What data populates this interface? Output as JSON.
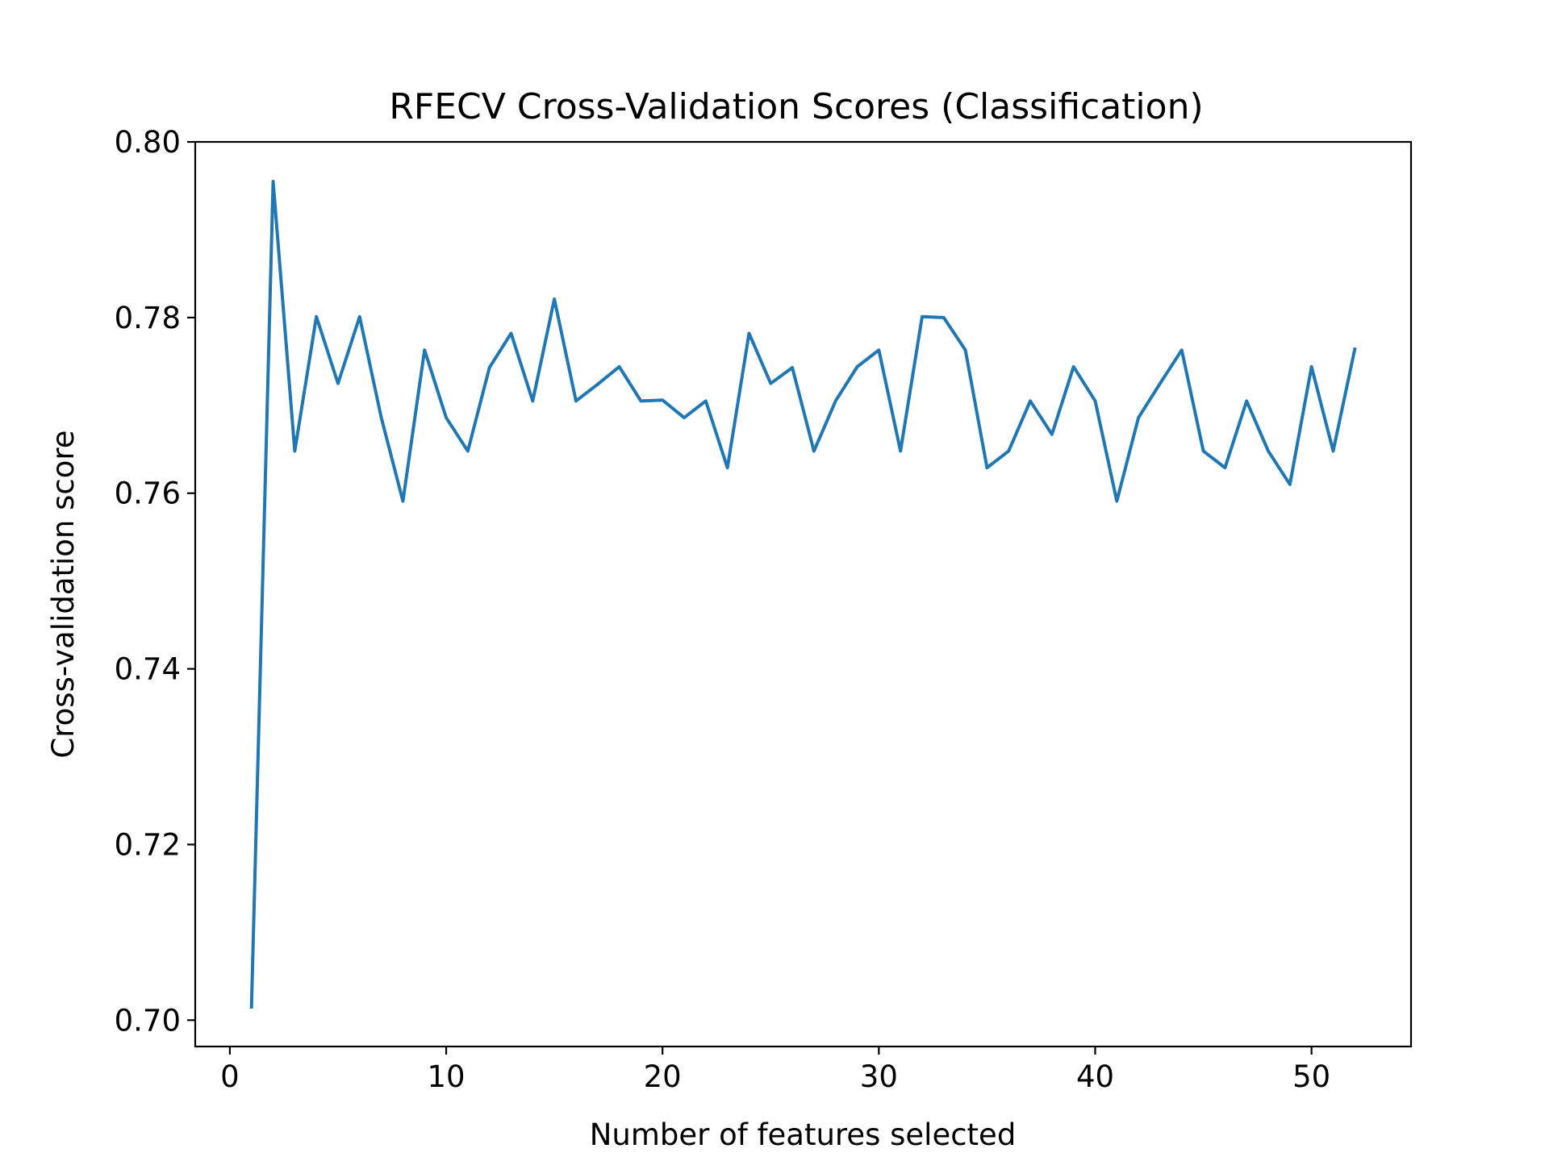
{
  "chart_data": {
    "type": "line",
    "title": "RFECV Cross-Validation Scores (Classification)",
    "xlabel": "Number of features selected",
    "ylabel": "Cross-validation score",
    "xlim": [
      -1.6,
      54.6
    ],
    "ylim": [
      0.697,
      0.8
    ],
    "xticks": [
      0,
      10,
      20,
      30,
      40,
      50
    ],
    "yticks": [
      0.7,
      0.72,
      0.74,
      0.76,
      0.78,
      0.8
    ],
    "xtick_labels": [
      "0",
      "10",
      "20",
      "30",
      "40",
      "50"
    ],
    "ytick_labels": [
      "0.70",
      "0.72",
      "0.74",
      "0.76",
      "0.78",
      "0.80"
    ],
    "grid": false,
    "legend": "none",
    "line_color": "#1f77b4",
    "series": [
      {
        "x": [
          1,
          2,
          3,
          4,
          5,
          6,
          7,
          8,
          9,
          10,
          11,
          12,
          13,
          14,
          15,
          16,
          17,
          18,
          19,
          20,
          21,
          22,
          23,
          24,
          25,
          26,
          27,
          28,
          29,
          30,
          31,
          32,
          33,
          34,
          35,
          36,
          37,
          38,
          39,
          40,
          41,
          42,
          43,
          44,
          45,
          46,
          47,
          48,
          49,
          50,
          51,
          52
        ],
        "values": [
          0.7015,
          0.7955,
          0.7648,
          0.7801,
          0.7725,
          0.7801,
          0.7686,
          0.7591,
          0.7763,
          0.7686,
          0.7648,
          0.7743,
          0.7782,
          0.7705,
          0.7821,
          0.7705,
          0.7724,
          0.7744,
          0.7705,
          0.7706,
          0.7686,
          0.7705,
          0.7629,
          0.7782,
          0.7725,
          0.7743,
          0.7648,
          0.7705,
          0.7744,
          0.7763,
          0.7648,
          0.7801,
          0.78,
          0.7763,
          0.7629,
          0.7648,
          0.7705,
          0.7667,
          0.7744,
          0.7705,
          0.7591,
          0.7686,
          0.7725,
          0.7763,
          0.7648,
          0.7629,
          0.7705,
          0.7648,
          0.761,
          0.7744,
          0.7648,
          0.7764
        ]
      }
    ]
  }
}
